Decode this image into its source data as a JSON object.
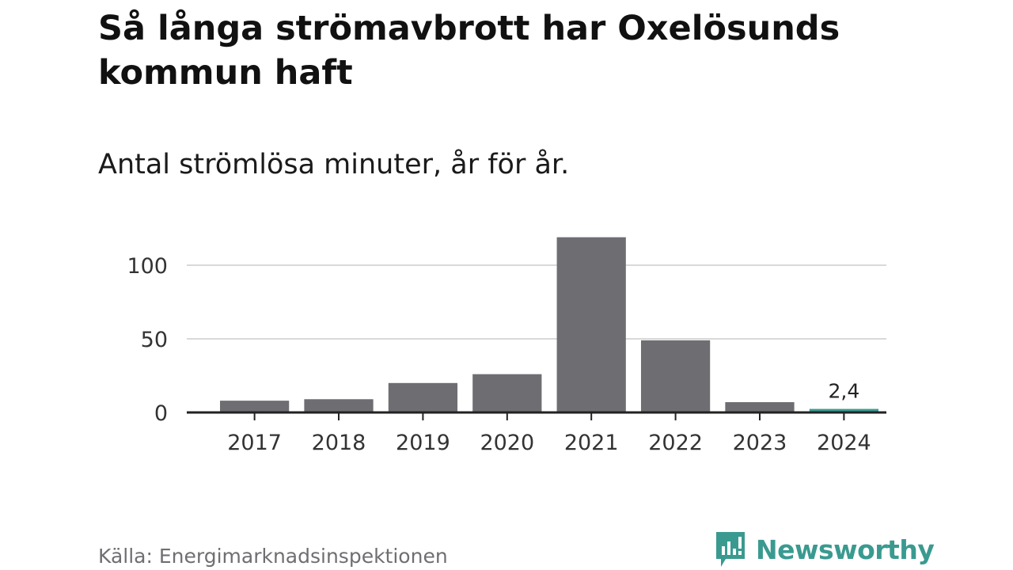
{
  "header": {
    "title": "Så långa strömavbrott har Oxelösunds kommun haft",
    "subtitle": "Antal strömlösa minuter, år för år."
  },
  "footer": {
    "source": "Källa: Energimarknadsinspektionen",
    "brand": "Newsworthy",
    "brand_icon": "newsworthy-logo-icon"
  },
  "colors": {
    "bar": "#6e6d72",
    "highlight": "#3a9a90",
    "grid": "#d9d9d9",
    "axis": "#222222"
  },
  "chart_data": {
    "type": "bar",
    "title": "Så långa strömavbrott har Oxelösunds kommun haft",
    "subtitle": "Antal strömlösa minuter, år för år.",
    "xlabel": "",
    "ylabel": "",
    "categories": [
      "2017",
      "2018",
      "2019",
      "2020",
      "2021",
      "2022",
      "2023",
      "2024"
    ],
    "values": [
      8,
      9,
      20,
      26,
      119,
      49,
      7,
      2.4
    ],
    "highlight_index": 7,
    "data_labels": [
      {
        "index": 7,
        "text": "2,4"
      }
    ],
    "yticks": [
      0,
      50,
      100
    ],
    "ylim": [
      0,
      120
    ],
    "grid": true
  }
}
